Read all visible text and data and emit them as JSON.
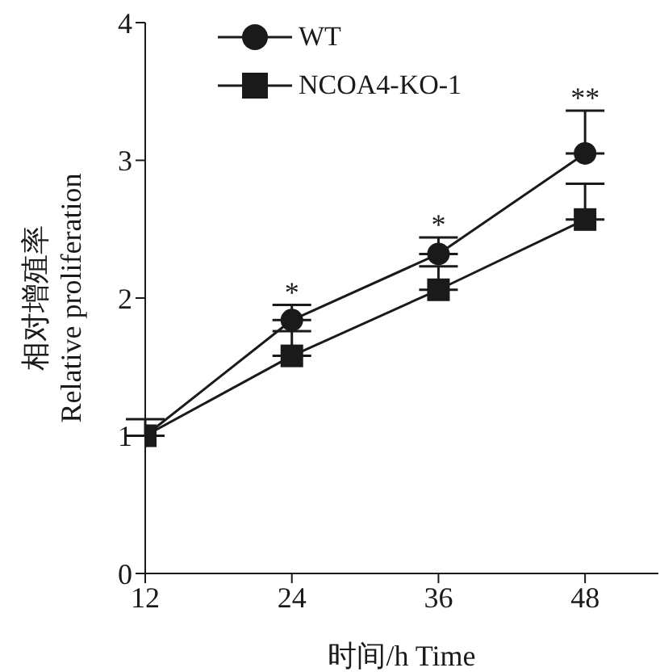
{
  "chart_data": {
    "type": "line",
    "xlabel": "时间/h Time",
    "ylabel": "相对增殖率\nRelative proliferation",
    "x": [
      12,
      24,
      36,
      48
    ],
    "xlim": [
      12,
      54
    ],
    "xticks": [
      12,
      24,
      36,
      48
    ],
    "ylim": [
      0,
      4
    ],
    "yticks": [
      0,
      1,
      2,
      3,
      4
    ],
    "legend": "top left",
    "grid": false,
    "line_style": "solid",
    "series": [
      {
        "name": "WT",
        "color": "#1a1a1a",
        "marker": "circle",
        "values": [
          1.0,
          1.84,
          2.32,
          3.05
        ],
        "errors": [
          [
            1.0,
            1.12
          ],
          [
            1.84,
            1.95
          ],
          [
            2.32,
            2.44
          ],
          [
            3.05,
            3.36
          ]
        ]
      },
      {
        "name": "NCOA4-KO-1",
        "color": "#1a1a1a",
        "marker": "square",
        "values": [
          1.0,
          1.58,
          2.06,
          2.57
        ],
        "errors": [
          null,
          [
            1.58,
            1.76
          ],
          [
            2.06,
            2.23
          ],
          [
            2.57,
            2.83
          ]
        ]
      }
    ],
    "annotations": [
      {
        "text": "*",
        "x": 24,
        "y": 1.84
      },
      {
        "text": "*",
        "x": 36,
        "y": 2.32
      },
      {
        "text": "**",
        "x": 48,
        "y": 3.05
      }
    ]
  }
}
